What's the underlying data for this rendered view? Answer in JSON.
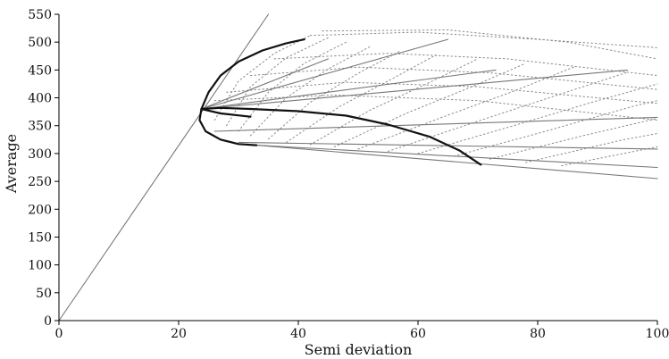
{
  "chart_data": {
    "type": "line",
    "title": "",
    "xlabel": "Semi deviation",
    "ylabel": "Average",
    "xlim": [
      0,
      100
    ],
    "ylim": [
      0,
      550
    ],
    "x_ticks": [
      0,
      20,
      40,
      60,
      80,
      100
    ],
    "y_ticks": [
      0,
      50,
      100,
      150,
      200,
      250,
      300,
      350,
      400,
      450,
      500,
      550
    ],
    "grid": false,
    "legend": "none",
    "series": [
      {
        "role": "tangent-line",
        "style": "thin-solid",
        "points": [
          [
            0,
            0
          ],
          [
            35,
            550
          ]
        ]
      },
      {
        "role": "frontier-upper",
        "style": "thick-solid",
        "points": [
          [
            23.8,
            380
          ],
          [
            25,
            410
          ],
          [
            27,
            440
          ],
          [
            30,
            465
          ],
          [
            34,
            485
          ],
          [
            38,
            498
          ],
          [
            41,
            505
          ]
        ]
      },
      {
        "role": "frontier-lower",
        "style": "thick-solid",
        "points": [
          [
            23.8,
            380
          ],
          [
            27,
            382
          ],
          [
            32,
            380
          ],
          [
            40,
            376
          ],
          [
            48,
            368
          ],
          [
            55,
            352
          ],
          [
            62,
            330
          ],
          [
            67,
            305
          ],
          [
            70.5,
            280
          ]
        ]
      },
      {
        "role": "frontier-short",
        "style": "thick-solid",
        "points": [
          [
            23.8,
            380
          ],
          [
            27,
            372
          ],
          [
            32,
            366
          ]
        ]
      },
      {
        "role": "frontier-bottom",
        "style": "thick-solid",
        "points": [
          [
            23.8,
            380
          ],
          [
            23.5,
            360
          ],
          [
            24.5,
            340
          ],
          [
            27,
            325
          ],
          [
            30,
            317
          ],
          [
            33,
            315
          ]
        ]
      },
      {
        "role": "gray-ray",
        "style": "thin-solid",
        "points": [
          [
            23.8,
            380
          ],
          [
            45,
            470
          ]
        ]
      },
      {
        "role": "gray-ray",
        "style": "thin-solid",
        "points": [
          [
            23.8,
            380
          ],
          [
            65,
            505
          ]
        ]
      },
      {
        "role": "gray-ray",
        "style": "thin-solid",
        "points": [
          [
            23.8,
            380
          ],
          [
            73,
            450
          ]
        ]
      },
      {
        "role": "gray-ray",
        "style": "thin-solid",
        "points": [
          [
            23.8,
            380
          ],
          [
            95,
            450
          ]
        ]
      },
      {
        "role": "gray-ray",
        "style": "thin-solid",
        "points": [
          [
            26,
            340
          ],
          [
            100,
            365
          ]
        ]
      },
      {
        "role": "gray-ray",
        "style": "thin-solid",
        "points": [
          [
            30,
            320
          ],
          [
            100,
            308
          ]
        ]
      },
      {
        "role": "gray-ray",
        "style": "thin-solid",
        "points": [
          [
            33,
            315
          ],
          [
            100,
            275
          ]
        ]
      },
      {
        "role": "gray-ray",
        "style": "thin-solid",
        "points": [
          [
            33,
            315
          ],
          [
            100,
            255
          ]
        ]
      },
      {
        "role": "dotted-curve",
        "style": "dotted",
        "points": [
          [
            26,
            360
          ],
          [
            30,
            430
          ],
          [
            36,
            480
          ],
          [
            42,
            512
          ]
        ]
      },
      {
        "role": "dotted-curve",
        "style": "dotted",
        "points": [
          [
            28,
            350
          ],
          [
            32,
            420
          ],
          [
            38,
            472
          ],
          [
            45,
            508
          ]
        ]
      },
      {
        "role": "dotted-curve",
        "style": "dotted",
        "points": [
          [
            30,
            340
          ],
          [
            35,
            410
          ],
          [
            41,
            462
          ],
          [
            48,
            500
          ]
        ]
      },
      {
        "role": "dotted-curve",
        "style": "dotted",
        "points": [
          [
            32,
            332
          ],
          [
            38,
            400
          ],
          [
            45,
            452
          ],
          [
            52,
            492
          ]
        ]
      },
      {
        "role": "dotted-curve",
        "style": "dotted",
        "points": [
          [
            35,
            326
          ],
          [
            42,
            392
          ],
          [
            50,
            444
          ],
          [
            57,
            484
          ]
        ]
      },
      {
        "role": "dotted-curve",
        "style": "dotted",
        "points": [
          [
            38,
            320
          ],
          [
            47,
            385
          ],
          [
            56,
            436
          ],
          [
            63,
            477
          ]
        ]
      },
      {
        "role": "dotted-curve",
        "style": "dotted",
        "points": [
          [
            42,
            316
          ],
          [
            52,
            378
          ],
          [
            62,
            428
          ],
          [
            70,
            470
          ]
        ]
      },
      {
        "role": "dotted-curve",
        "style": "dotted",
        "points": [
          [
            46,
            312
          ],
          [
            58,
            372
          ],
          [
            69,
            420
          ],
          [
            78,
            462
          ]
        ]
      },
      {
        "role": "dotted-curve",
        "style": "dotted",
        "points": [
          [
            50,
            308
          ],
          [
            64,
            365
          ],
          [
            76,
            412
          ],
          [
            86,
            455
          ]
        ]
      },
      {
        "role": "dotted-curve",
        "style": "dotted",
        "points": [
          [
            55,
            304
          ],
          [
            70,
            358
          ],
          [
            83,
            404
          ],
          [
            95,
            446
          ]
        ]
      },
      {
        "role": "dotted-curve",
        "style": "dotted",
        "points": [
          [
            60,
            300
          ],
          [
            76,
            350
          ],
          [
            90,
            395
          ],
          [
            100,
            425
          ]
        ]
      },
      {
        "role": "dotted-curve",
        "style": "dotted",
        "points": [
          [
            66,
            295
          ],
          [
            82,
            342
          ],
          [
            96,
            385
          ],
          [
            100,
            395
          ]
        ]
      },
      {
        "role": "dotted-curve",
        "style": "dotted",
        "points": [
          [
            72,
            290
          ],
          [
            88,
            333
          ],
          [
            100,
            363
          ]
        ]
      },
      {
        "role": "dotted-curve",
        "style": "dotted",
        "points": [
          [
            78,
            284
          ],
          [
            94,
            324
          ],
          [
            100,
            336
          ]
        ]
      },
      {
        "role": "dotted-curve",
        "style": "dotted",
        "points": [
          [
            84,
            278
          ],
          [
            100,
            312
          ]
        ]
      },
      {
        "role": "dotted-curve",
        "style": "dotted",
        "points": [
          [
            42,
            512
          ],
          [
            60,
            518
          ],
          [
            80,
            505
          ],
          [
            100,
            490
          ]
        ]
      },
      {
        "role": "dotted-curve",
        "style": "dotted",
        "points": [
          [
            44,
            520
          ],
          [
            65,
            522
          ],
          [
            85,
            500
          ],
          [
            100,
            470
          ]
        ]
      },
      {
        "role": "dotted-curve",
        "style": "dotted",
        "points": [
          [
            36,
            470
          ],
          [
            55,
            480
          ],
          [
            75,
            470
          ],
          [
            100,
            440
          ]
        ]
      },
      {
        "role": "dotted-curve",
        "style": "dotted",
        "points": [
          [
            32,
            440
          ],
          [
            50,
            455
          ],
          [
            72,
            445
          ],
          [
            100,
            415
          ]
        ]
      },
      {
        "role": "dotted-curve",
        "style": "dotted",
        "points": [
          [
            28,
            410
          ],
          [
            48,
            428
          ],
          [
            70,
            420
          ],
          [
            100,
            390
          ]
        ]
      },
      {
        "role": "dotted-curve",
        "style": "dotted",
        "points": [
          [
            26,
            395
          ],
          [
            46,
            405
          ],
          [
            70,
            395
          ],
          [
            100,
            360
          ]
        ]
      }
    ]
  }
}
